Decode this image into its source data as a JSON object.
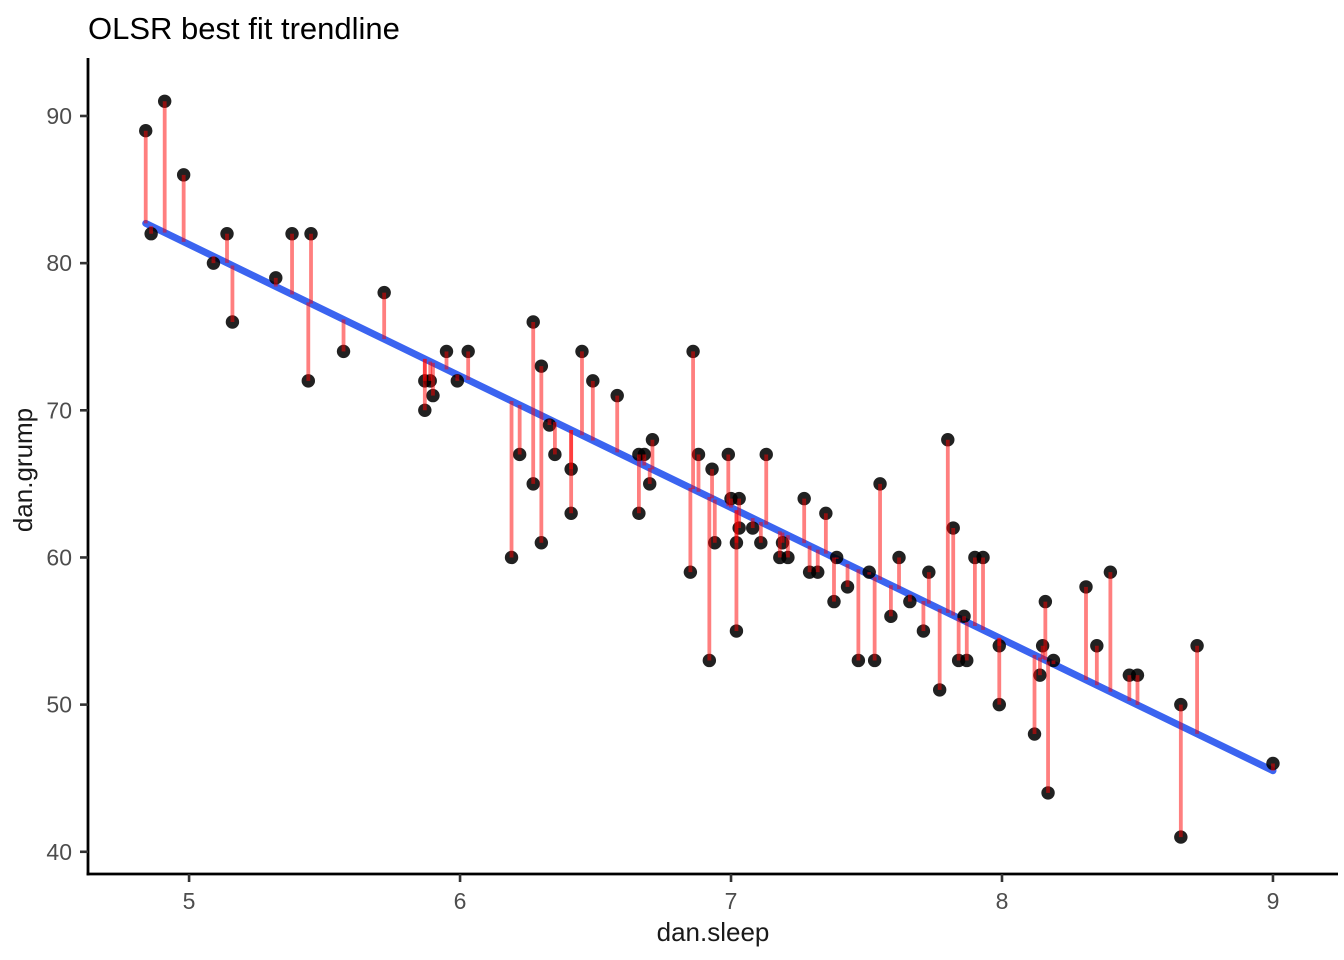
{
  "title": "OLSR best fit trendline",
  "chart_data": {
    "type": "scatter",
    "title": "OLSR best fit trendline",
    "xlabel": "dan.sleep",
    "ylabel": "dan.grump",
    "x_ticks": [
      5,
      6,
      7,
      8,
      9
    ],
    "y_ticks": [
      40,
      50,
      60,
      70,
      80,
      90
    ],
    "xlim": [
      4.627,
      9.24
    ],
    "ylim": [
      38.49,
      93.94
    ],
    "grid": false,
    "legend_position": "none",
    "point_color": "#000000",
    "point_opacity": 0.87,
    "axis_color": "#000000",
    "tick_label_color": "#4d4d4d",
    "trendline": {
      "name": "OLS regression line",
      "slope": -8.94,
      "intercept": 125.97,
      "x_start": 4.84,
      "x_end": 9.0,
      "color": "#3b64f0",
      "width": 7
    },
    "residuals": {
      "name": "residual segments",
      "color": "#ff0000",
      "opacity": 0.5,
      "width": 3.8
    },
    "points_header": [
      "dan.sleep",
      "dan.grump"
    ],
    "points": [
      [
        4.84,
        89
      ],
      [
        4.86,
        82
      ],
      [
        4.91,
        91
      ],
      [
        4.98,
        86
      ],
      [
        5.09,
        80
      ],
      [
        5.14,
        82
      ],
      [
        5.16,
        76
      ],
      [
        5.32,
        79
      ],
      [
        5.38,
        82
      ],
      [
        5.44,
        72
      ],
      [
        5.45,
        82
      ],
      [
        5.57,
        74
      ],
      [
        5.72,
        78
      ],
      [
        5.87,
        72
      ],
      [
        5.87,
        70
      ],
      [
        5.89,
        72
      ],
      [
        5.9,
        71
      ],
      [
        5.95,
        74
      ],
      [
        5.99,
        72
      ],
      [
        6.03,
        74
      ],
      [
        6.19,
        60
      ],
      [
        6.22,
        67
      ],
      [
        6.27,
        76
      ],
      [
        6.27,
        65
      ],
      [
        6.3,
        73
      ],
      [
        6.3,
        61
      ],
      [
        6.33,
        69
      ],
      [
        6.35,
        67
      ],
      [
        6.41,
        66
      ],
      [
        6.41,
        63
      ],
      [
        6.45,
        74
      ],
      [
        6.49,
        72
      ],
      [
        6.58,
        71
      ],
      [
        6.66,
        67
      ],
      [
        6.66,
        63
      ],
      [
        6.68,
        67
      ],
      [
        6.7,
        65
      ],
      [
        6.71,
        68
      ],
      [
        6.85,
        59
      ],
      [
        6.86,
        74
      ],
      [
        6.88,
        67
      ],
      [
        6.92,
        53
      ],
      [
        6.93,
        66
      ],
      [
        6.94,
        61
      ],
      [
        6.99,
        67
      ],
      [
        7.0,
        64
      ],
      [
        7.02,
        61
      ],
      [
        7.02,
        55
      ],
      [
        7.03,
        64
      ],
      [
        7.03,
        62
      ],
      [
        7.08,
        62
      ],
      [
        7.11,
        61
      ],
      [
        7.13,
        67
      ],
      [
        7.18,
        60
      ],
      [
        7.19,
        61
      ],
      [
        7.21,
        60
      ],
      [
        7.27,
        64
      ],
      [
        7.29,
        59
      ],
      [
        7.32,
        59
      ],
      [
        7.35,
        63
      ],
      [
        7.38,
        57
      ],
      [
        7.39,
        60
      ],
      [
        7.43,
        58
      ],
      [
        7.47,
        53
      ],
      [
        7.51,
        59
      ],
      [
        7.53,
        53
      ],
      [
        7.55,
        65
      ],
      [
        7.59,
        56
      ],
      [
        7.62,
        60
      ],
      [
        7.66,
        57
      ],
      [
        7.71,
        55
      ],
      [
        7.73,
        59
      ],
      [
        7.77,
        51
      ],
      [
        7.8,
        68
      ],
      [
        7.82,
        62
      ],
      [
        7.84,
        53
      ],
      [
        7.86,
        56
      ],
      [
        7.87,
        53
      ],
      [
        7.9,
        60
      ],
      [
        7.93,
        60
      ],
      [
        7.99,
        54
      ],
      [
        7.99,
        50
      ],
      [
        8.12,
        48
      ],
      [
        8.14,
        52
      ],
      [
        8.15,
        54
      ],
      [
        8.16,
        57
      ],
      [
        8.17,
        44
      ],
      [
        8.19,
        53
      ],
      [
        8.31,
        58
      ],
      [
        8.35,
        54
      ],
      [
        8.4,
        59
      ],
      [
        8.47,
        52
      ],
      [
        8.5,
        52
      ],
      [
        8.66,
        50
      ],
      [
        8.66,
        41
      ],
      [
        8.72,
        54
      ],
      [
        9.0,
        46
      ]
    ]
  }
}
